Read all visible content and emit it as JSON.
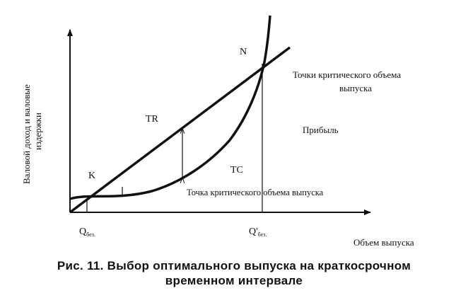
{
  "axes": {
    "y_label_line1": "Валовой доход и валовые",
    "y_label_line2": "издержки",
    "x_label": "Объем выпуска"
  },
  "curves": {
    "tr": "TR",
    "tc": "TC"
  },
  "points": {
    "k": "K",
    "n": "N"
  },
  "ticks": {
    "q1_main": "Q",
    "q1_sub": "без.",
    "q2_main": "Q'",
    "q2_sub": "без."
  },
  "annotations": {
    "critical_points_line1": "Точки критического объема",
    "critical_points_line2": "выпуска",
    "profit": "Прибыль",
    "critical_point_single": "Точка критического объема выпуска"
  },
  "caption": {
    "line1": "Рис. 11. Выбор оптимального выпуска на краткосрочном",
    "line2": "временном интервале"
  }
}
